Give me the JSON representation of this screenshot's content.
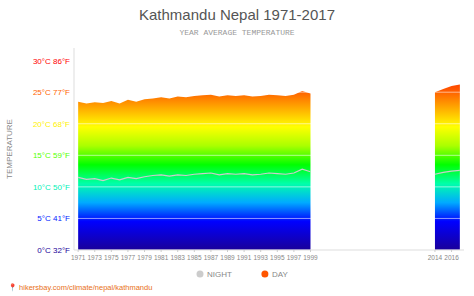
{
  "chart_data": {
    "type": "area",
    "title": "Kathmandu Nepal 1971-2017",
    "subtitle": "YEAR AVERAGE TEMPERATURE",
    "y_label": "TEMPERATURE",
    "annotations": [
      "📍 hikersbay.com/climate/nepal/kathmandu"
    ],
    "xlim": [
      1970.5,
      2017.5
    ],
    "xticks": [
      1971,
      1973,
      1975,
      1977,
      1979,
      1981,
      1983,
      1985,
      1987,
      1989,
      1991,
      1993,
      1995,
      1997,
      1999,
      2014,
      2016
    ],
    "ylim": [
      0,
      32
    ],
    "yticks": [
      {
        "value": 0,
        "label": "0°C 32°F"
      },
      {
        "value": 5,
        "label": "5°C 41°F"
      },
      {
        "value": 10,
        "label": "10°C 50°F"
      },
      {
        "value": 15,
        "label": "15°C 59°F"
      },
      {
        "value": 20,
        "label": "20°C 68°F"
      },
      {
        "value": 25,
        "label": "25°C 77°F"
      },
      {
        "value": 30,
        "label": "30°C 86°F"
      }
    ],
    "grid": true,
    "series": [
      {
        "name": "DAY",
        "type": "area",
        "color": "#ff5500",
        "x": [
          1971,
          1972,
          1973,
          1974,
          1975,
          1976,
          1977,
          1978,
          1979,
          1980,
          1981,
          1982,
          1983,
          1984,
          1985,
          1986,
          1987,
          1988,
          1989,
          1990,
          1991,
          1992,
          1993,
          1994,
          1995,
          1996,
          1997,
          1998,
          1999
        ],
        "values": [
          23.5,
          23.2,
          23.4,
          23.3,
          23.6,
          23.2,
          23.8,
          23.5,
          23.9,
          24.0,
          24.2,
          24.0,
          24.3,
          24.2,
          24.4,
          24.5,
          24.6,
          24.3,
          24.5,
          24.4,
          24.5,
          24.3,
          24.4,
          24.6,
          24.5,
          24.4,
          24.6,
          25.2,
          24.8
        ]
      },
      {
        "type": "area",
        "color": "#ff5500",
        "x": [
          2014,
          2015,
          2016,
          2017
        ],
        "values": [
          25.0,
          25.5,
          26.0,
          26.2
        ]
      },
      {
        "name": "NIGHT",
        "type": "line",
        "color": "#cccccc",
        "x": [
          1971,
          1972,
          1973,
          1974,
          1975,
          1976,
          1977,
          1978,
          1979,
          1980,
          1981,
          1982,
          1983,
          1984,
          1985,
          1986,
          1987,
          1988,
          1989,
          1990,
          1991,
          1992,
          1993,
          1994,
          1995,
          1996,
          1997,
          1998,
          1999
        ],
        "values": [
          11.5,
          11.2,
          11.3,
          11.0,
          11.4,
          11.1,
          11.5,
          11.3,
          11.6,
          11.8,
          11.9,
          11.7,
          11.9,
          11.8,
          12.0,
          12.1,
          12.2,
          11.9,
          12.1,
          12.0,
          12.1,
          11.9,
          12.0,
          12.2,
          12.1,
          12.0,
          12.2,
          12.8,
          12.4
        ]
      },
      {
        "type": "line",
        "color": "#cccccc",
        "x": [
          2014,
          2015,
          2016,
          2017
        ],
        "values": [
          12.0,
          12.3,
          12.5,
          12.6
        ]
      }
    ]
  }
}
